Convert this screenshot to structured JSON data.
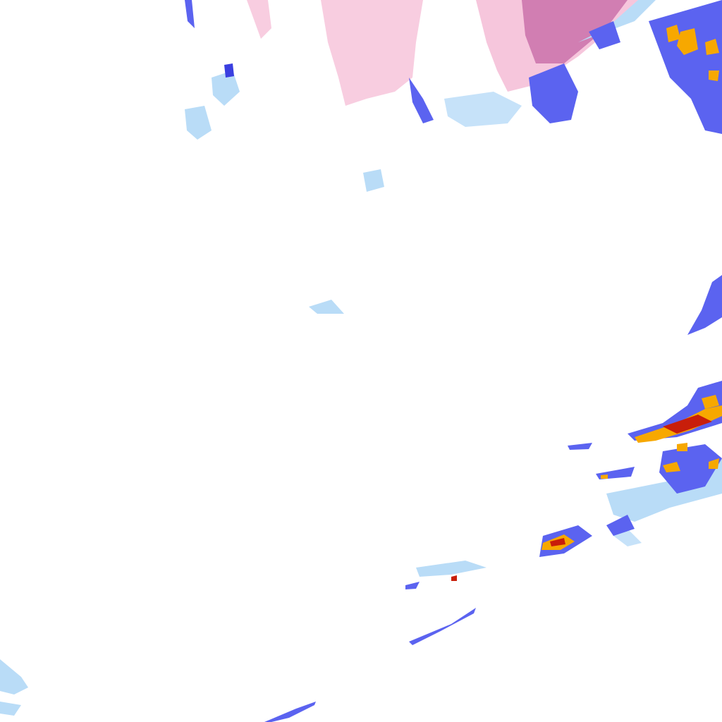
{
  "map": {
    "type": "precipitation-radar-tile",
    "colors": {
      "background": "#ffffff",
      "light_rain": "#b9dcf7",
      "moderate_rain": "#5b63f0",
      "heavy_rain": "#f7a800",
      "intense_rain": "#c81e0a",
      "snow": "#f6c6dc",
      "heavy_snow": "#c060a0"
    }
  }
}
